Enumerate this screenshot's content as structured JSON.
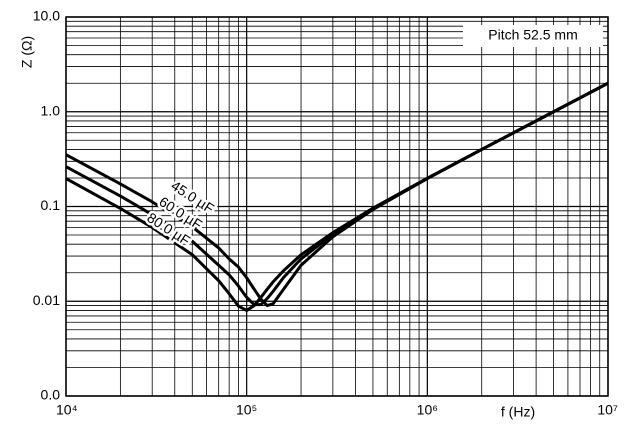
{
  "chart_data": {
    "type": "line",
    "x_label": "f (Hz)",
    "y_label": "Z (Ω)",
    "annotation": "Pitch 52.5 mm",
    "x_log": true,
    "y_log": true,
    "grid": true,
    "minor_grid": true,
    "xlim": [
      10000,
      10000000
    ],
    "ylim": [
      0.001,
      10
    ],
    "xticks": [
      {
        "value": 10000,
        "label": "10⁴"
      },
      {
        "value": 100000,
        "label": "10⁵"
      },
      {
        "value": 1000000,
        "label": "10⁶"
      },
      {
        "value": 10000000,
        "label": "10⁷"
      }
    ],
    "yticks": [
      {
        "value": 0.001,
        "label": "0.0"
      },
      0.01,
      0.1,
      {
        "value": 1,
        "label": "1.0"
      },
      {
        "value": 10,
        "label": "10.0"
      }
    ],
    "x": [
      10000,
      20000,
      30000,
      50000,
      70000,
      80000,
      90000,
      100000,
      110000,
      120000,
      130000,
      140000,
      160000,
      200000,
      300000,
      500000,
      1000000,
      2000000,
      5000000,
      10000000
    ],
    "series": [
      {
        "name": "45.0 µF",
        "color": "#000000",
        "values": [
          0.352,
          0.173,
          0.112,
          0.061,
          0.0365,
          0.028,
          0.023,
          0.0177,
          0.0134,
          0.0105,
          0.009,
          0.0094,
          0.0134,
          0.024,
          0.048,
          0.093,
          0.197,
          0.4,
          1.0,
          2.0
        ]
      },
      {
        "name": "60.0 µF",
        "color": "#000000",
        "values": [
          0.263,
          0.129,
          0.082,
          0.043,
          0.024,
          0.019,
          0.0145,
          0.011,
          0.0092,
          0.0092,
          0.0107,
          0.0127,
          0.0178,
          0.028,
          0.051,
          0.095,
          0.198,
          0.4,
          1.0,
          2.0
        ]
      },
      {
        "name": "80.0 µF",
        "color": "#000000",
        "values": [
          0.197,
          0.0955,
          0.06,
          0.031,
          0.0165,
          0.012,
          0.0089,
          0.008,
          0.009,
          0.011,
          0.0134,
          0.016,
          0.021,
          0.031,
          0.053,
          0.096,
          0.199,
          0.4,
          1.0,
          2.0
        ]
      }
    ]
  }
}
